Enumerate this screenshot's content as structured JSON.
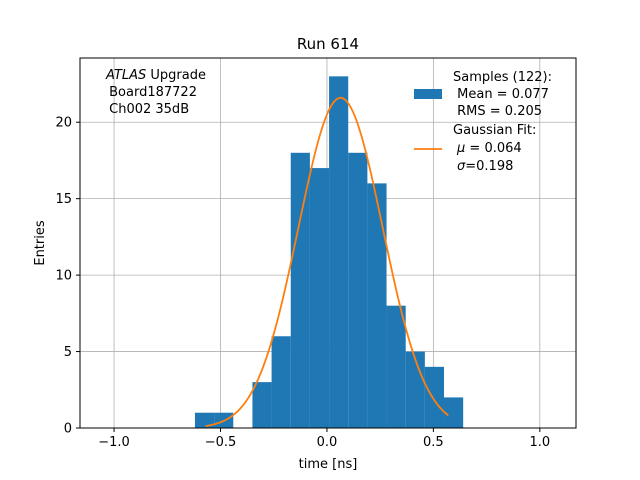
{
  "chart_data": {
    "type": "bar",
    "title": "Run 614",
    "xlabel": "time [ns]",
    "ylabel": "Entries",
    "xlim": [
      -1.16,
      1.17
    ],
    "ylim": [
      0,
      24.2
    ],
    "grid": true,
    "xticks": [
      -1.0,
      -0.5,
      0.0,
      0.5,
      1.0
    ],
    "xtick_labels": [
      "−1.0",
      "−0.5",
      "0.0",
      "0.5",
      "1.0"
    ],
    "yticks": [
      0,
      5,
      10,
      15,
      20
    ],
    "ytick_labels": [
      "0",
      "5",
      "10",
      "15",
      "20"
    ],
    "histogram": {
      "name": "Samples (122):",
      "color": "#1f77b4",
      "bins": [
        {
          "x0": -0.62,
          "x1": -0.53,
          "value": 1
        },
        {
          "x0": -0.53,
          "x1": -0.44,
          "value": 1
        },
        {
          "x0": -0.44,
          "x1": -0.35,
          "value": 0
        },
        {
          "x0": -0.35,
          "x1": -0.26,
          "value": 3
        },
        {
          "x0": -0.26,
          "x1": -0.17,
          "value": 6
        },
        {
          "x0": -0.17,
          "x1": -0.08,
          "value": 18
        },
        {
          "x0": -0.08,
          "x1": 0.01,
          "value": 17
        },
        {
          "x0": 0.01,
          "x1": 0.1,
          "value": 23
        },
        {
          "x0": 0.1,
          "x1": 0.19,
          "value": 18
        },
        {
          "x0": 0.19,
          "x1": 0.28,
          "value": 16
        },
        {
          "x0": 0.28,
          "x1": 0.37,
          "value": 8
        },
        {
          "x0": 0.37,
          "x1": 0.46,
          "value": 5
        },
        {
          "x0": 0.46,
          "x1": 0.55,
          "value": 4
        },
        {
          "x0": 0.55,
          "x1": 0.64,
          "value": 2
        }
      ]
    },
    "fit": {
      "name": "Gaussian Fit:",
      "color": "#ff7f0e",
      "mu": 0.064,
      "sigma": 0.198,
      "amplitude": 21.6,
      "x_range": [
        -0.57,
        0.57
      ]
    },
    "legend_position": "top-right",
    "legend": {
      "hist_lines": [
        "Samples (122):",
        " Mean = 0.077",
        " RMS = 0.205"
      ],
      "fit_title": "Gaussian Fit:",
      "fit_mu_value": " = 0.064",
      "fit_sigma_value": "=0.198"
    },
    "annotation": {
      "atlas": "ATLAS",
      "upgrade": " Upgrade",
      "board": " Board187722",
      "channel": " Ch002 35dB"
    }
  }
}
